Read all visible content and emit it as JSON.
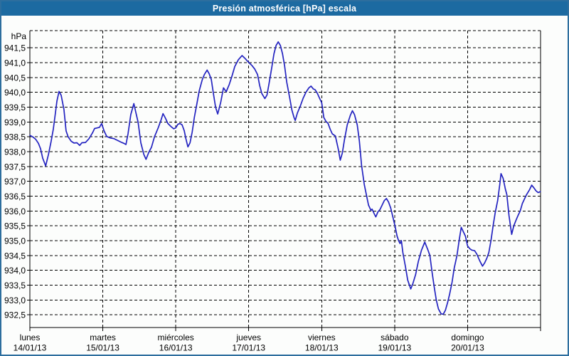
{
  "window": {
    "title": "Presión atmosférica [hPa] escala"
  },
  "colors": {
    "title_bar": "#1c6aa1",
    "frame_border": "#2d6e9e",
    "background": "#fcfdfc",
    "grid": "#000000",
    "text": "#000000",
    "line": "#2323c0"
  },
  "chart_data": {
    "type": "line",
    "title": "Presión atmosférica [hPa] escala",
    "grid": "dashed",
    "legend_position": "none",
    "y_axis": {
      "unit": "hPa",
      "tick_labels": [
        "941,5",
        "941,0",
        "940,5",
        "940,0",
        "939,5",
        "939,0",
        "938,5",
        "938,0",
        "937,5",
        "937,0",
        "936,5",
        "936,0",
        "935,5",
        "935,0",
        "934,5",
        "934,0",
        "933,5",
        "933,0",
        "932,5"
      ],
      "top_value": 942.08,
      "bottom_value": 932.07
    },
    "x_axis": {
      "total_hours": 168,
      "hours_per_day": 24,
      "day_labels": [
        {
          "name": "lunes",
          "date": "14/01/13"
        },
        {
          "name": "martes",
          "date": "15/01/13"
        },
        {
          "name": "miércoles",
          "date": "16/01/13"
        },
        {
          "name": "jueves",
          "date": "17/01/13"
        },
        {
          "name": "viernes",
          "date": "18/01/13"
        },
        {
          "name": "sábado",
          "date": "19/01/13"
        },
        {
          "name": "domingo",
          "date": "20/01/13"
        }
      ]
    },
    "series": [
      {
        "name": "Presión atmosférica",
        "color": "#2323c0",
        "points_hours_hpa": [
          [
            0,
            938.55
          ],
          [
            0.9,
            938.5
          ],
          [
            1.9,
            938.42
          ],
          [
            2.8,
            938.28
          ],
          [
            3.5,
            938.1
          ],
          [
            4.2,
            937.78
          ],
          [
            5.2,
            937.52
          ],
          [
            6.1,
            937.9
          ],
          [
            7,
            938.35
          ],
          [
            7.7,
            938.75
          ],
          [
            8.4,
            939.3
          ],
          [
            8.9,
            939.7
          ],
          [
            9.6,
            940.03
          ],
          [
            10.3,
            939.9
          ],
          [
            11.2,
            939.42
          ],
          [
            11.9,
            938.7
          ],
          [
            12.6,
            938.5
          ],
          [
            13.6,
            938.35
          ],
          [
            14.5,
            938.29
          ],
          [
            15.5,
            938.3
          ],
          [
            16.4,
            938.21
          ],
          [
            17.1,
            938.3
          ],
          [
            18.3,
            938.31
          ],
          [
            19.4,
            938.43
          ],
          [
            20.6,
            938.63
          ],
          [
            21.3,
            938.78
          ],
          [
            22.2,
            938.8
          ],
          [
            22.9,
            938.82
          ],
          [
            23.6,
            938.95
          ],
          [
            24.4,
            938.7
          ],
          [
            25.3,
            938.51
          ],
          [
            26.5,
            938.46
          ],
          [
            27.6,
            938.44
          ],
          [
            28.8,
            938.38
          ],
          [
            30,
            938.32
          ],
          [
            30.9,
            938.28
          ],
          [
            31.6,
            938.24
          ],
          [
            32.3,
            938.6
          ],
          [
            33.2,
            939.25
          ],
          [
            34.2,
            939.62
          ],
          [
            34.9,
            939.3
          ],
          [
            35.6,
            939
          ],
          [
            36.5,
            938.3
          ],
          [
            37.5,
            937.9
          ],
          [
            38.2,
            937.74
          ],
          [
            39.1,
            937.97
          ],
          [
            40,
            938.15
          ],
          [
            41,
            938.5
          ],
          [
            42.2,
            938.8
          ],
          [
            43.1,
            939.05
          ],
          [
            43.8,
            939.28
          ],
          [
            44.5,
            939.15
          ],
          [
            45.4,
            938.95
          ],
          [
            46.4,
            938.85
          ],
          [
            47.3,
            938.77
          ],
          [
            48,
            938.8
          ],
          [
            48.7,
            938.92
          ],
          [
            49.4,
            938.95
          ],
          [
            50.1,
            938.9
          ],
          [
            50.8,
            938.7
          ],
          [
            51.3,
            938.45
          ],
          [
            52,
            938.16
          ],
          [
            52.7,
            938.3
          ],
          [
            53.4,
            938.66
          ],
          [
            54.1,
            939.15
          ],
          [
            55,
            939.65
          ],
          [
            55.7,
            940.05
          ],
          [
            56.7,
            940.42
          ],
          [
            57.4,
            940.6
          ],
          [
            58.3,
            940.75
          ],
          [
            59,
            940.62
          ],
          [
            59.7,
            940.43
          ],
          [
            60.4,
            939.95
          ],
          [
            61.1,
            939.5
          ],
          [
            61.8,
            939.27
          ],
          [
            62.8,
            939.67
          ],
          [
            63.7,
            940.15
          ],
          [
            64.6,
            940.02
          ],
          [
            65.6,
            940.27
          ],
          [
            66.5,
            940.55
          ],
          [
            67.4,
            940.87
          ],
          [
            68.6,
            941.1
          ],
          [
            69.8,
            941.24
          ],
          [
            70.7,
            941.15
          ],
          [
            71.4,
            941.07
          ],
          [
            72.1,
            941
          ],
          [
            73.1,
            940.9
          ],
          [
            74,
            940.78
          ],
          [
            74.9,
            940.6
          ],
          [
            75.6,
            940.23
          ],
          [
            76.3,
            939.96
          ],
          [
            77.3,
            939.79
          ],
          [
            78,
            939.91
          ],
          [
            78.7,
            940.3
          ],
          [
            79.6,
            940.85
          ],
          [
            80.3,
            941.3
          ],
          [
            81,
            941.58
          ],
          [
            81.7,
            941.7
          ],
          [
            82.4,
            941.58
          ],
          [
            83.1,
            941.3
          ],
          [
            83.8,
            940.9
          ],
          [
            84.5,
            940.35
          ],
          [
            85.5,
            939.8
          ],
          [
            86.2,
            939.4
          ],
          [
            86.9,
            939.15
          ],
          [
            87.3,
            939.05
          ],
          [
            88,
            939.3
          ],
          [
            89,
            939.55
          ],
          [
            89.9,
            939.8
          ],
          [
            90.8,
            940
          ],
          [
            91.8,
            940.15
          ],
          [
            92.5,
            940.21
          ],
          [
            93.2,
            940.12
          ],
          [
            93.9,
            940.08
          ],
          [
            94.6,
            939.96
          ],
          [
            95.3,
            939.8
          ],
          [
            96,
            939.65
          ],
          [
            96.7,
            939.15
          ],
          [
            97.4,
            939.02
          ],
          [
            98.1,
            938.95
          ],
          [
            98.8,
            938.75
          ],
          [
            99.5,
            938.6
          ],
          [
            100.5,
            938.53
          ],
          [
            101.4,
            938.11
          ],
          [
            102.1,
            937.71
          ],
          [
            102.8,
            937.95
          ],
          [
            103.5,
            938.4
          ],
          [
            104.4,
            938.9
          ],
          [
            105.4,
            939.22
          ],
          [
            106.1,
            939.38
          ],
          [
            106.8,
            939.25
          ],
          [
            107.7,
            938.9
          ],
          [
            108.4,
            938.35
          ],
          [
            109.1,
            937.55
          ],
          [
            110,
            936.9
          ],
          [
            110.7,
            936.55
          ],
          [
            111.4,
            936.2
          ],
          [
            112.2,
            936.02
          ],
          [
            112.6,
            936.06
          ],
          [
            113.3,
            935.9
          ],
          [
            113.8,
            935.8
          ],
          [
            114.5,
            935.97
          ],
          [
            115.2,
            936.05
          ],
          [
            115.9,
            936.2
          ],
          [
            116.6,
            936.35
          ],
          [
            117.3,
            936.42
          ],
          [
            118,
            936.3
          ],
          [
            118.7,
            936.1
          ],
          [
            119.4,
            935.8
          ],
          [
            120.1,
            935.5
          ],
          [
            120.8,
            935.15
          ],
          [
            121.3,
            935
          ],
          [
            121.8,
            934.9
          ],
          [
            122.2,
            935
          ],
          [
            122.7,
            934.6
          ],
          [
            123.6,
            934.1
          ],
          [
            124.3,
            933.67
          ],
          [
            125.3,
            933.37
          ],
          [
            126,
            933.55
          ],
          [
            126.9,
            933.85
          ],
          [
            127.8,
            934.3
          ],
          [
            128.8,
            934.67
          ],
          [
            129.9,
            934.95
          ],
          [
            130.9,
            934.7
          ],
          [
            131.6,
            934.5
          ],
          [
            132.3,
            933.95
          ],
          [
            133,
            933.45
          ],
          [
            133.7,
            933
          ],
          [
            134.4,
            932.7
          ],
          [
            135.3,
            932.53
          ],
          [
            136,
            932.52
          ],
          [
            136.7,
            932.65
          ],
          [
            137.4,
            932.9
          ],
          [
            138.1,
            933.2
          ],
          [
            138.9,
            933.6
          ],
          [
            139.6,
            934.07
          ],
          [
            140.5,
            934.5
          ],
          [
            141.2,
            935
          ],
          [
            141.9,
            935.45
          ],
          [
            142.6,
            935.3
          ],
          [
            143.3,
            935.15
          ],
          [
            144,
            934.82
          ],
          [
            144.7,
            934.73
          ],
          [
            145.4,
            934.68
          ],
          [
            146.3,
            934.66
          ],
          [
            147,
            934.55
          ],
          [
            148,
            934.32
          ],
          [
            148.9,
            934.14
          ],
          [
            149.6,
            934.25
          ],
          [
            150.3,
            934.4
          ],
          [
            151,
            934.6
          ],
          [
            151.7,
            935
          ],
          [
            152.4,
            935.5
          ],
          [
            153.1,
            935.95
          ],
          [
            153.9,
            936.35
          ],
          [
            154.6,
            936.9
          ],
          [
            155,
            937.26
          ],
          [
            155.7,
            937.1
          ],
          [
            156.4,
            936.75
          ],
          [
            156.9,
            936.55
          ],
          [
            157.6,
            935.85
          ],
          [
            158.5,
            935.21
          ],
          [
            159.2,
            935.5
          ],
          [
            159.9,
            935.68
          ],
          [
            160.6,
            935.85
          ],
          [
            161.3,
            936
          ],
          [
            162,
            936.25
          ],
          [
            162.7,
            936.4
          ],
          [
            163.4,
            936.55
          ],
          [
            164.4,
            936.72
          ],
          [
            165.1,
            936.87
          ],
          [
            165.8,
            936.78
          ],
          [
            166.5,
            936.68
          ],
          [
            167.2,
            936.62
          ],
          [
            167.9,
            936.65
          ]
        ]
      }
    ]
  }
}
